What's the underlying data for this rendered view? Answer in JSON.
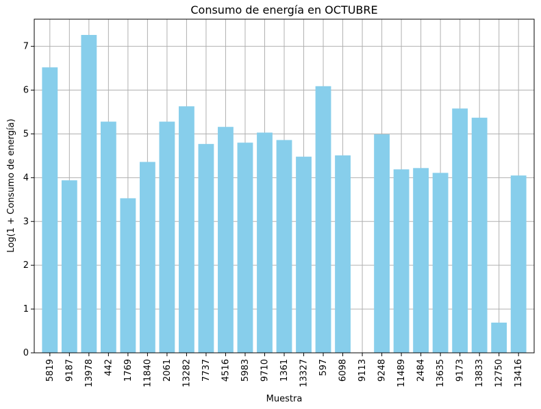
{
  "chart_data": {
    "type": "bar",
    "title": "Consumo de energía en OCTUBRE",
    "xlabel": "Muestra",
    "ylabel": "Log(1 + Consumo de energía)",
    "categories": [
      "5819",
      "9187",
      "13978",
      "442",
      "1769",
      "11840",
      "2061",
      "13282",
      "7737",
      "4516",
      "5983",
      "9710",
      "1361",
      "13327",
      "597",
      "6098",
      "9113",
      "9248",
      "11489",
      "2484",
      "13635",
      "9173",
      "13833",
      "12750",
      "13416"
    ],
    "values": [
      6.52,
      3.94,
      7.26,
      5.28,
      3.53,
      4.36,
      5.28,
      5.63,
      4.77,
      5.16,
      4.8,
      5.03,
      4.86,
      4.48,
      6.09,
      4.51,
      0,
      4.99,
      4.19,
      4.22,
      4.11,
      5.58,
      5.37,
      0.69,
      4.05
    ],
    "ylim": [
      0,
      7.62
    ],
    "yticks": [
      0,
      1,
      2,
      3,
      4,
      5,
      6,
      7
    ],
    "grid": true,
    "bar_color": "#87CEEB",
    "grid_color": "#b0b0b0"
  }
}
